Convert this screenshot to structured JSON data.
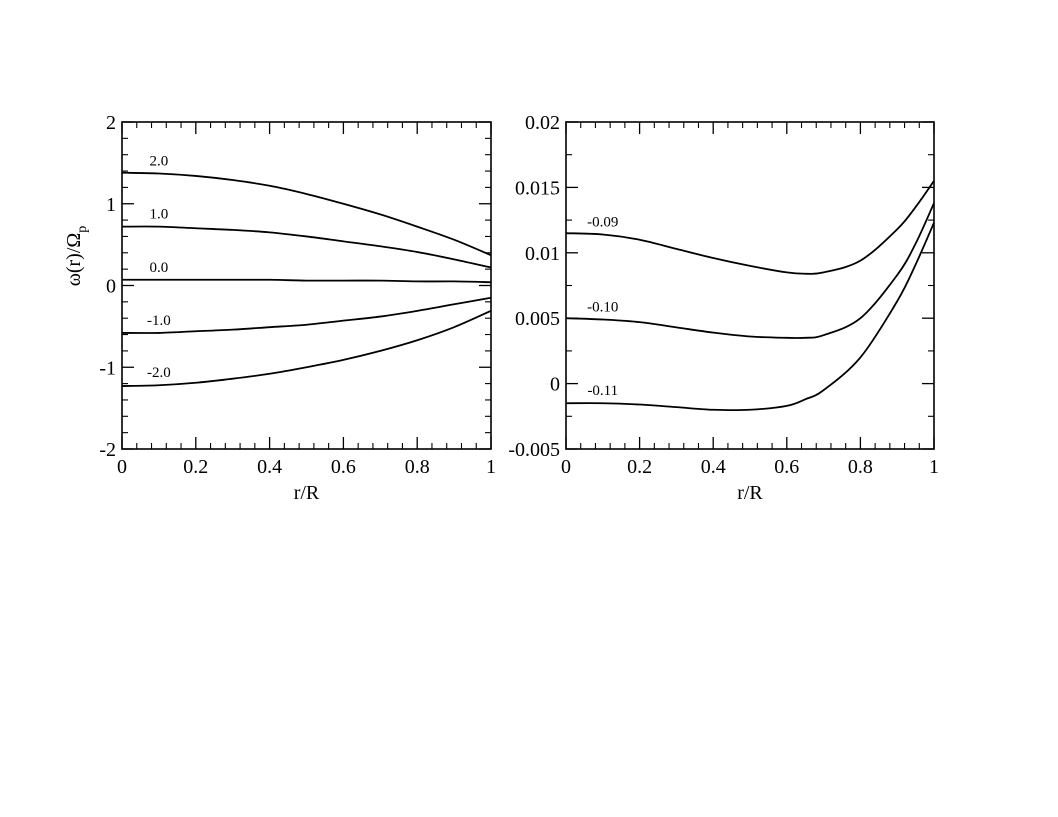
{
  "chart_data": [
    {
      "type": "line",
      "xlabel": "r/R",
      "ylabel": "ω(r)/Ω",
      "ylabel_sub": "p",
      "xlim": [
        0,
        1
      ],
      "ylim": [
        -2,
        2
      ],
      "x_ticks": [
        0,
        0.2,
        0.4,
        0.6,
        0.8,
        1
      ],
      "x_tick_labels": [
        "0",
        "0.2",
        "0.4",
        "0.6",
        "0.8",
        "1"
      ],
      "y_ticks": [
        -2,
        -1,
        0,
        1,
        2
      ],
      "y_tick_labels": [
        "-2",
        "-1",
        "0",
        "1",
        "2"
      ],
      "grid": false,
      "x": [
        0,
        0.1,
        0.2,
        0.3,
        0.4,
        0.5,
        0.6,
        0.7,
        0.8,
        0.9,
        1.0
      ],
      "series": [
        {
          "label": "2.0",
          "label_at": 0.1,
          "values": [
            1.38,
            1.37,
            1.34,
            1.29,
            1.22,
            1.12,
            1.0,
            0.87,
            0.72,
            0.56,
            0.37
          ]
        },
        {
          "label": "1.0",
          "label_at": 0.1,
          "values": [
            0.72,
            0.72,
            0.7,
            0.68,
            0.65,
            0.6,
            0.54,
            0.48,
            0.41,
            0.32,
            0.22
          ]
        },
        {
          "label": "0.0",
          "label_at": 0.1,
          "values": [
            0.07,
            0.07,
            0.07,
            0.07,
            0.07,
            0.06,
            0.06,
            0.06,
            0.05,
            0.05,
            0.04
          ]
        },
        {
          "label": "-1.0",
          "label_at": 0.1,
          "values": [
            -0.58,
            -0.58,
            -0.56,
            -0.54,
            -0.51,
            -0.48,
            -0.43,
            -0.38,
            -0.31,
            -0.23,
            -0.15
          ]
        },
        {
          "label": "-2.0",
          "label_at": 0.1,
          "values": [
            -1.23,
            -1.22,
            -1.19,
            -1.14,
            -1.08,
            -1.0,
            -0.91,
            -0.8,
            -0.67,
            -0.51,
            -0.31
          ]
        }
      ]
    },
    {
      "type": "line",
      "xlabel": "r/R",
      "xlim": [
        0,
        1
      ],
      "ylim": [
        -0.005,
        0.02
      ],
      "x_ticks": [
        0,
        0.2,
        0.4,
        0.6,
        0.8,
        1
      ],
      "x_tick_labels": [
        "0",
        "0.2",
        "0.4",
        "0.6",
        "0.8",
        "1"
      ],
      "y_ticks": [
        -0.005,
        0,
        0.005,
        0.01,
        0.015,
        0.02
      ],
      "y_tick_labels": [
        "-0.005",
        "0",
        "0.005",
        "0.01",
        "0.015",
        "0.02"
      ],
      "grid": false,
      "x": [
        0,
        0.1,
        0.2,
        0.3,
        0.4,
        0.5,
        0.6,
        0.65,
        0.7,
        0.8,
        0.9,
        0.95,
        1.0
      ],
      "series": [
        {
          "label": "-0.09",
          "label_at": 0.1,
          "values": [
            0.0115,
            0.0114,
            0.011,
            0.0103,
            0.0096,
            0.009,
            0.0085,
            0.0084,
            0.0085,
            0.0094,
            0.0118,
            0.0135,
            0.0155
          ]
        },
        {
          "label": "-0.10",
          "label_at": 0.1,
          "values": [
            0.005,
            0.0049,
            0.0047,
            0.0043,
            0.0039,
            0.0036,
            0.0035,
            0.0035,
            0.0037,
            0.005,
            0.0083,
            0.0107,
            0.0138
          ]
        },
        {
          "label": "-0.11",
          "label_at": 0.1,
          "values": [
            -0.0015,
            -0.0015,
            -0.0016,
            -0.0018,
            -0.002,
            -0.002,
            -0.0017,
            -0.0012,
            -0.0005,
            0.002,
            0.0063,
            0.0091,
            0.0123
          ]
        }
      ]
    }
  ]
}
